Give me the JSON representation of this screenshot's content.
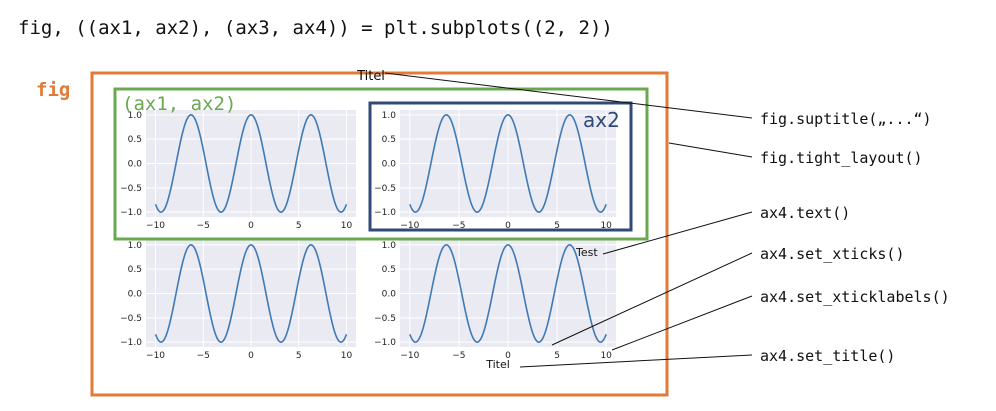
{
  "code_header": "fig, ((ax1, ax2), (ax3, ax4)) = plt.subplots((2, 2))",
  "labels": {
    "fig": "fig",
    "row_label": "(ax1, ax2)",
    "ax2": "ax2",
    "suptitle_text": "Titel",
    "test_text": "Test",
    "ax4_title": "Titel"
  },
  "callouts": [
    "fig.suptitle(„...“)",
    "fig.tight_layout()",
    "ax4.text()",
    "ax4.set_xticks()",
    "ax4.set_xticklabels()",
    "ax4.set_title()"
  ],
  "colors": {
    "fig_box": "#e07b39",
    "row_box": "#6aa84f",
    "ax2_box": "#2f4a7a",
    "plot_bg": "#eaeaf2",
    "grid": "#ffffff",
    "curve": "#3f7ab5"
  },
  "subplots": [
    {
      "name": "ax1"
    },
    {
      "name": "ax2"
    },
    {
      "name": "ax3"
    },
    {
      "name": "ax4"
    }
  ],
  "chart_data": {
    "type": "line",
    "function": "cos",
    "xlim": [
      -10,
      10
    ],
    "ylim": [
      -1.0,
      1.0
    ],
    "xticks": [
      -10,
      -5,
      0,
      5,
      10
    ],
    "xticklabels": [
      "−10",
      "−5",
      "0",
      "5",
      "10"
    ],
    "yticks": [
      1.0,
      0.5,
      0.0,
      -0.5,
      -1.0
    ],
    "yticklabels": [
      "1.0",
      "0.5",
      "0.0",
      "−0.5",
      "−1.0"
    ],
    "grid": true
  }
}
